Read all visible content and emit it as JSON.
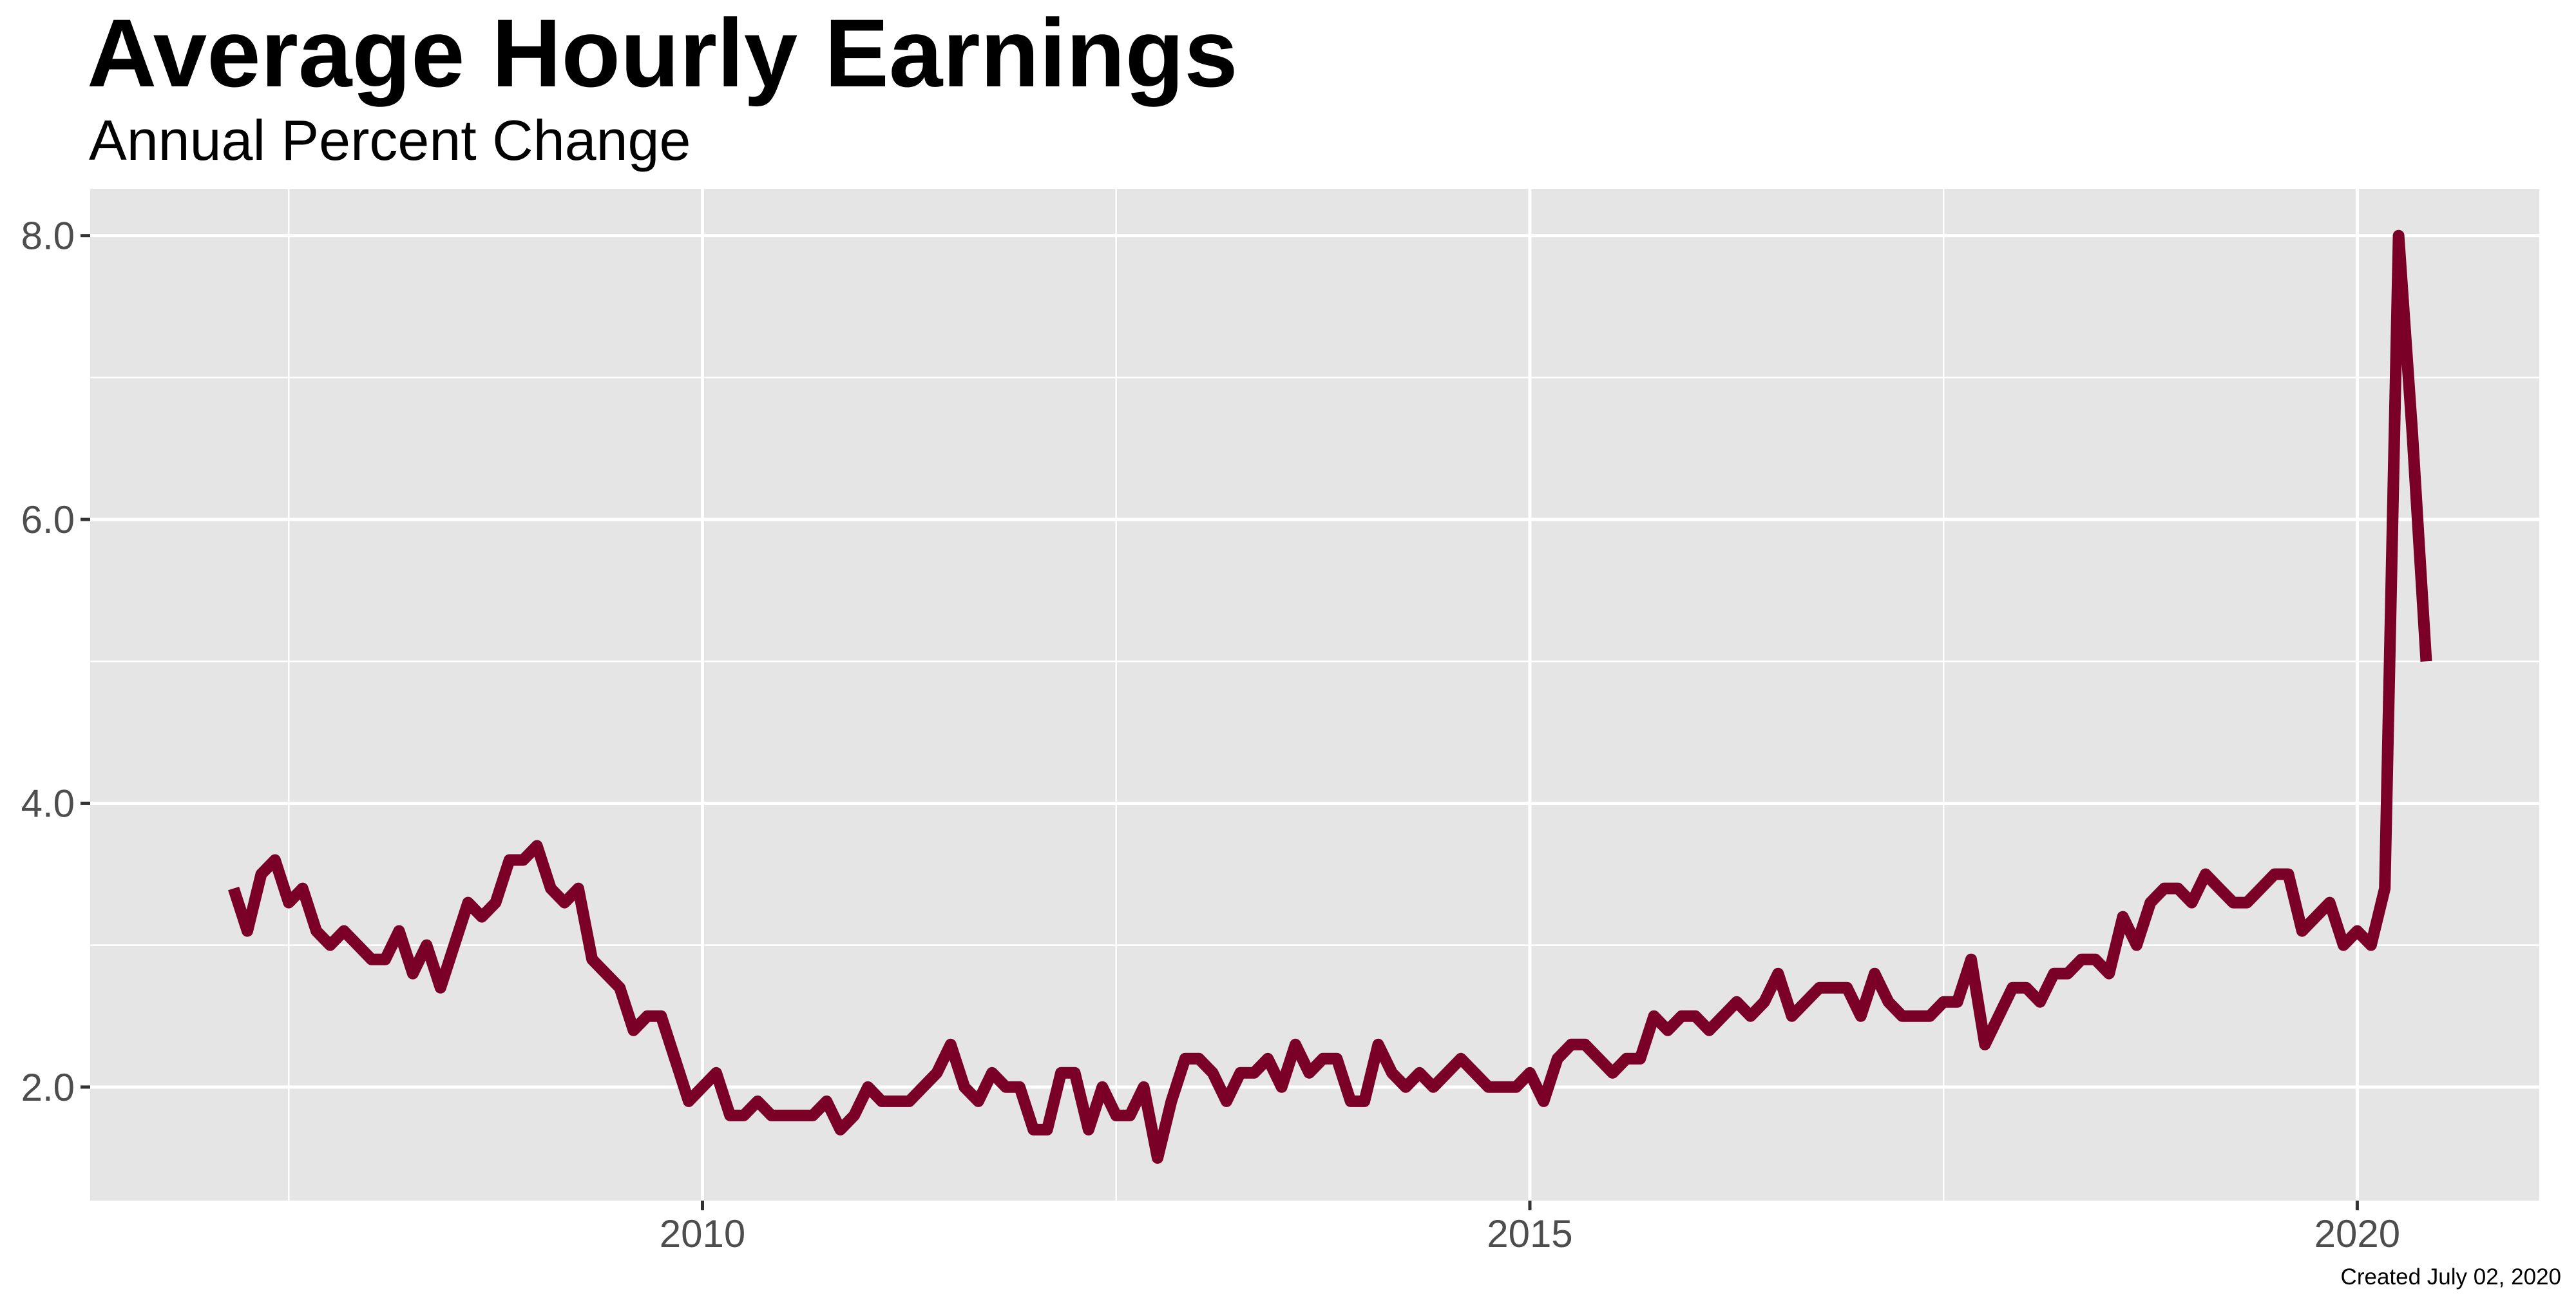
{
  "title": "Average Hourly Earnings",
  "subtitle": "Annual Percent Change",
  "caption": "Created July 02, 2020",
  "colors": {
    "line": "#7a0028",
    "panel": "#e5e5e5",
    "grid": "#ffffff",
    "tick_text": "#4d4d4d"
  },
  "chart_data": {
    "type": "line",
    "title": "Average Hourly Earnings",
    "subtitle": "Annual Percent Change",
    "xlabel": "",
    "ylabel": "",
    "xlim": [
      2006.3,
      2021.1
    ],
    "ylim": [
      1.2,
      8.33
    ],
    "x_major_ticks": [
      2010,
      2015,
      2020
    ],
    "x_minor_ticks": [
      2007.5,
      2012.5,
      2017.5
    ],
    "y_major_ticks": [
      2.0,
      4.0,
      6.0,
      8.0
    ],
    "y_minor_ticks": [
      3.0,
      5.0,
      7.0
    ],
    "y_tick_labels": [
      "2.0",
      "4.0",
      "6.0",
      "8.0"
    ],
    "x_tick_labels": [
      "2010",
      "2015",
      "2020"
    ],
    "grid": true,
    "legend": "none",
    "series": [
      {
        "start": "2007-03",
        "values": [
          3.4,
          3.1,
          3.5,
          3.6,
          3.3,
          3.4,
          3.1,
          3.0,
          3.1,
          3.0,
          2.9,
          2.9,
          3.1,
          2.8,
          3.0,
          2.7,
          3.0,
          3.3,
          3.2,
          3.3,
          3.6,
          3.6,
          3.7,
          3.4,
          3.3,
          3.4,
          2.9,
          2.8,
          2.7,
          2.4,
          2.5,
          2.5,
          2.2,
          1.9,
          2.0,
          2.1,
          1.8,
          1.8,
          1.9,
          1.8,
          1.8,
          1.8,
          1.8,
          1.9,
          1.7,
          1.8,
          2.0,
          1.9,
          1.9,
          1.9,
          2.0,
          2.1,
          2.3,
          2.0,
          1.9,
          2.1,
          2.0,
          2.0,
          1.7,
          1.7,
          2.1,
          2.1,
          1.7,
          2.0,
          1.8,
          1.8,
          2.0,
          1.5,
          1.9,
          2.2,
          2.2,
          2.1,
          1.9,
          2.1,
          2.1,
          2.2,
          2.0,
          2.3,
          2.1,
          2.2,
          2.2,
          1.9,
          1.9,
          2.3,
          2.1,
          2.0,
          2.1,
          2.0,
          2.1,
          2.2,
          2.1,
          2.0,
          2.0,
          2.0,
          2.1,
          1.9,
          2.2,
          2.3,
          2.3,
          2.2,
          2.1,
          2.2,
          2.2,
          2.5,
          2.4,
          2.5,
          2.5,
          2.4,
          2.5,
          2.6,
          2.5,
          2.6,
          2.8,
          2.5,
          2.6,
          2.7,
          2.7,
          2.7,
          2.5,
          2.8,
          2.6,
          2.5,
          2.5,
          2.5,
          2.6,
          2.6,
          2.9,
          2.3,
          2.5,
          2.7,
          2.7,
          2.6,
          2.8,
          2.8,
          2.9,
          2.9,
          2.8,
          3.2,
          3.0,
          3.3,
          3.4,
          3.4,
          3.3,
          3.5,
          3.4,
          3.3,
          3.3,
          3.4,
          3.5,
          3.5,
          3.1,
          3.2,
          3.3,
          3.0,
          3.1,
          3.0,
          3.4,
          8.0,
          6.6,
          5.0
        ]
      }
    ]
  }
}
